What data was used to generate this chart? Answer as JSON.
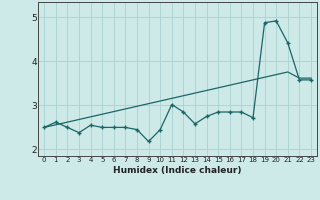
{
  "xlabel": "Humidex (Indice chaleur)",
  "ylabel": "",
  "bg_color": "#cde9e8",
  "grid_color": "#aed4d3",
  "line_color": "#1a6666",
  "x_data": [
    0,
    1,
    2,
    3,
    4,
    5,
    6,
    7,
    8,
    9,
    10,
    11,
    12,
    13,
    14,
    15,
    16,
    17,
    18,
    19,
    20,
    21,
    22,
    23
  ],
  "y_actual": [
    2.5,
    2.62,
    2.5,
    2.38,
    2.55,
    2.5,
    2.5,
    2.5,
    2.45,
    2.18,
    2.45,
    3.02,
    2.85,
    2.58,
    2.75,
    2.85,
    2.85,
    2.85,
    2.72,
    4.88,
    4.92,
    4.42,
    3.58,
    3.58
  ],
  "y_trend": [
    2.5,
    2.56,
    2.62,
    2.68,
    2.74,
    2.8,
    2.86,
    2.92,
    2.98,
    3.04,
    3.1,
    3.16,
    3.22,
    3.28,
    3.34,
    3.4,
    3.46,
    3.52,
    3.58,
    3.64,
    3.7,
    3.76,
    3.62,
    3.62
  ],
  "ylim": [
    1.85,
    5.35
  ],
  "xlim": [
    -0.5,
    23.5
  ],
  "yticks": [
    2,
    3,
    4,
    5
  ],
  "xticks": [
    0,
    1,
    2,
    3,
    4,
    5,
    6,
    7,
    8,
    9,
    10,
    11,
    12,
    13,
    14,
    15,
    16,
    17,
    18,
    19,
    20,
    21,
    22,
    23
  ]
}
